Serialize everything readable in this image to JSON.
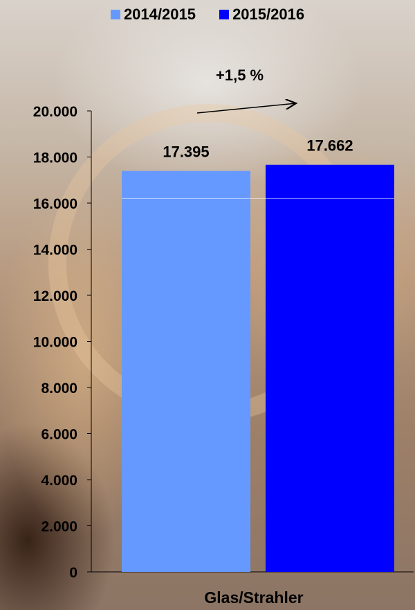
{
  "chart_data": {
    "type": "bar",
    "categories": [
      "Glas/Strahler"
    ],
    "series": [
      {
        "name": "2014/2015",
        "values": [
          17395
        ],
        "color": "#6699ff"
      },
      {
        "name": "2015/2016",
        "values": [
          17662
        ],
        "color": "#0000ff"
      }
    ],
    "data_labels": [
      "17.395",
      "17.662"
    ],
    "y_ticks": [
      "0",
      "2.000",
      "4.000",
      "6.000",
      "8.000",
      "10.000",
      "12.000",
      "14.000",
      "16.000",
      "18.000",
      "20.000"
    ],
    "ylim": [
      0,
      20000
    ],
    "annotation": "+1,5 %",
    "legend_position": "top",
    "grid": false
  }
}
